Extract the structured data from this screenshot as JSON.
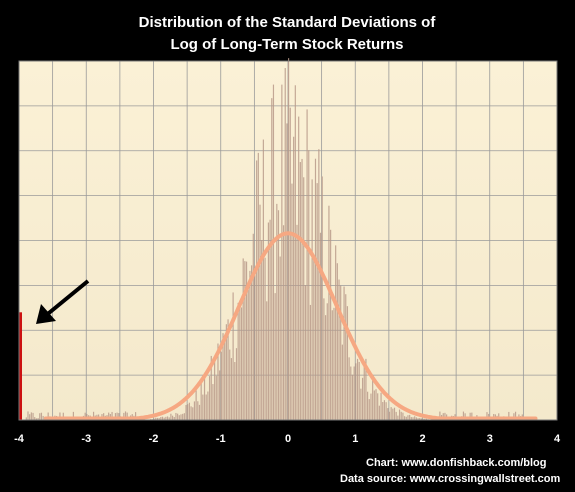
{
  "chart_data": {
    "type": "bar",
    "title_lines": [
      "Distribution of the Standard Deviations of",
      "Log of Long-Term Stock Returns"
    ],
    "xlim": [
      -4,
      4
    ],
    "ylim": [
      0,
      1
    ],
    "x_ticks": [
      "-4",
      "-3",
      "-2",
      "-1",
      "0",
      "1",
      "2",
      "3",
      "4"
    ],
    "grid": true,
    "histogram": {
      "name": "",
      "color": "#b89a8a",
      "bin_width": 0.025,
      "peak_x": 0.0,
      "description_values": {
        "x_start": -3.9,
        "x_end": 3.5,
        "peak_height_fraction": 0.78
      },
      "outlier": {
        "x": -4.0,
        "height_fraction": 0.3,
        "color": "#cc1111"
      }
    },
    "normal_curve": {
      "name": "",
      "mean": 0.0,
      "sd": 0.73,
      "peak_height_fraction": 0.52,
      "color": "#f6a882"
    },
    "annotation": {
      "type": "arrow",
      "points_to_x": -4.0
    },
    "credits": [
      "Chart: www.donfishback.com/blog",
      "Data source: www.crossingwallstreet.com"
    ],
    "background": "#fbf0d8",
    "page_background": "#000000",
    "grid_color": "#9a9a9a"
  }
}
